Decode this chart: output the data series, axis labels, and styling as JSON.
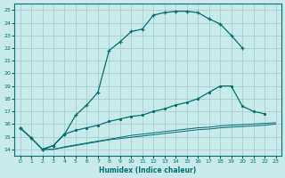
{
  "xlabel": "Humidex (Indice chaleur)",
  "bg_color": "#c8eaea",
  "grid_color": "#a0c8c8",
  "line_color": "#007070",
  "xlim": [
    -0.5,
    23.5
  ],
  "ylim": [
    13.5,
    25.5
  ],
  "xticks": [
    0,
    1,
    2,
    3,
    4,
    5,
    6,
    7,
    8,
    9,
    10,
    11,
    12,
    13,
    14,
    15,
    16,
    17,
    18,
    19,
    20,
    21,
    22,
    23
  ],
  "yticks": [
    14,
    15,
    16,
    17,
    18,
    19,
    20,
    21,
    22,
    23,
    24,
    25
  ],
  "curve1_x": [
    0,
    1,
    2,
    3,
    4,
    5,
    6,
    7,
    8,
    9,
    10,
    11,
    12,
    13,
    14,
    15,
    16,
    17,
    18,
    19,
    20
  ],
  "curve1_y": [
    15.7,
    14.9,
    14.0,
    14.3,
    15.2,
    16.7,
    17.5,
    18.5,
    21.8,
    22.5,
    23.3,
    23.5,
    24.6,
    24.8,
    24.9,
    24.9,
    24.8,
    24.3,
    23.9,
    23.0,
    22.0
  ],
  "curve2_x": [
    0,
    1,
    2,
    3,
    4,
    5,
    6,
    7,
    8,
    9,
    10,
    11,
    12,
    13,
    14,
    15,
    16,
    17,
    18,
    19,
    20,
    21,
    22
  ],
  "curve2_y": [
    15.7,
    14.9,
    14.0,
    14.3,
    15.2,
    15.5,
    15.7,
    15.9,
    16.2,
    16.4,
    16.6,
    16.7,
    17.0,
    17.2,
    17.5,
    17.7,
    18.0,
    18.5,
    19.0,
    19.0,
    17.4,
    17.0,
    16.8
  ],
  "curve3_x": [
    2,
    3,
    4,
    5,
    6,
    7,
    8,
    9,
    10,
    11,
    12,
    13,
    14,
    15,
    16,
    17,
    18,
    19,
    20,
    21,
    22,
    23
  ],
  "curve3_y": [
    14.0,
    14.0,
    14.15,
    14.3,
    14.45,
    14.6,
    14.75,
    14.85,
    14.95,
    15.05,
    15.15,
    15.25,
    15.35,
    15.45,
    15.55,
    15.6,
    15.7,
    15.75,
    15.8,
    15.85,
    15.9,
    16.0
  ],
  "curve4_x": [
    2,
    3,
    4,
    5,
    6,
    7,
    8,
    9,
    10,
    11,
    12,
    13,
    14,
    15,
    16,
    17,
    18,
    19,
    20,
    21,
    22,
    23
  ],
  "curve4_y": [
    14.0,
    14.0,
    14.2,
    14.35,
    14.5,
    14.65,
    14.8,
    14.95,
    15.1,
    15.2,
    15.3,
    15.4,
    15.5,
    15.6,
    15.7,
    15.75,
    15.85,
    15.9,
    15.95,
    16.0,
    16.05,
    16.1
  ]
}
